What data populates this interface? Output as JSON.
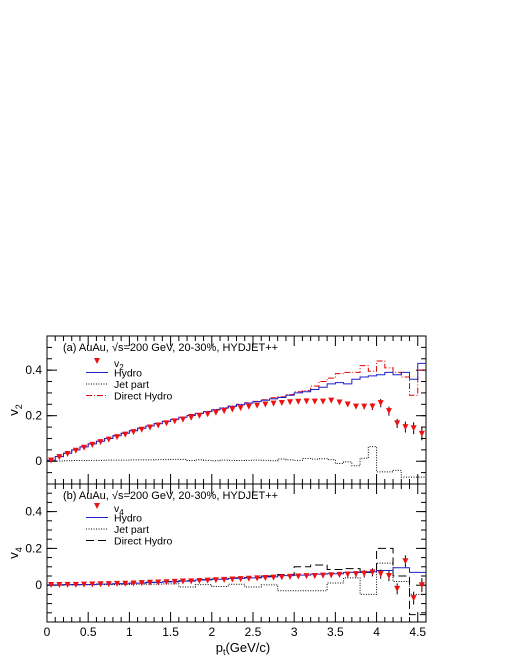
{
  "chart_data": {
    "type": "line",
    "x_axis": {
      "label": "p",
      "label_sub": "t",
      "label_unit": "(GeV/c)",
      "range": [
        0,
        4.6
      ],
      "ticks": [
        {
          "v": 0,
          "label": "0"
        },
        {
          "v": 0.5,
          "label": "0.5"
        },
        {
          "v": 1,
          "label": "1"
        },
        {
          "v": 1.5,
          "label": "1.5"
        },
        {
          "v": 2,
          "label": "2"
        },
        {
          "v": 2.5,
          "label": "2.5"
        },
        {
          "v": 3,
          "label": "3"
        },
        {
          "v": 3.5,
          "label": "3.5"
        },
        {
          "v": 4,
          "label": "4"
        },
        {
          "v": 4.5,
          "label": "4.5"
        }
      ]
    },
    "panels": [
      {
        "id": "a",
        "header_prefix": "(a)  AuAu, ",
        "header_sqrt": "√",
        "header_rest": "s=200 GeV, 20-30%, HYDJET++",
        "ylabel": "v",
        "ylabel_sub": "2",
        "ylim": [
          -0.1,
          0.55
        ],
        "yticks": [
          {
            "v": 0,
            "label": "0"
          },
          {
            "v": 0.2,
            "label": "0.2"
          },
          {
            "v": 0.4,
            "label": "0.4"
          }
        ],
        "legend": [
          {
            "label": "v",
            "sub": "2",
            "style": "marker"
          },
          {
            "label": "Hydro",
            "style": "hydro"
          },
          {
            "label": "Jet part",
            "style": "jet"
          },
          {
            "label": "Direct Hydro",
            "style": "direct"
          }
        ],
        "series": {
          "hydro": {
            "edges": [
              0,
              0.1,
              0.2,
              0.3,
              0.4,
              0.5,
              0.6,
              0.7,
              0.8,
              0.9,
              1.0,
              1.1,
              1.2,
              1.3,
              1.4,
              1.5,
              1.6,
              1.7,
              1.8,
              1.9,
              2.0,
              2.1,
              2.2,
              2.3,
              2.4,
              2.5,
              2.6,
              2.7,
              2.8,
              2.9,
              3.0,
              3.1,
              3.2,
              3.3,
              3.4,
              3.5,
              3.6,
              3.7,
              3.8,
              3.9,
              4.0,
              4.1,
              4.2,
              4.3,
              4.4,
              4.5,
              4.6
            ],
            "values": [
              0.005,
              0.02,
              0.035,
              0.05,
              0.063,
              0.076,
              0.088,
              0.1,
              0.112,
              0.123,
              0.134,
              0.145,
              0.155,
              0.165,
              0.175,
              0.184,
              0.193,
              0.201,
              0.21,
              0.218,
              0.226,
              0.233,
              0.241,
              0.248,
              0.255,
              0.262,
              0.268,
              0.274,
              0.28,
              0.29,
              0.3,
              0.305,
              0.315,
              0.325,
              0.34,
              0.345,
              0.34,
              0.36,
              0.37,
              0.375,
              0.38,
              0.39,
              0.38,
              0.39,
              0.36,
              0.43
            ]
          },
          "jet": {
            "edges": [
              0,
              0.1,
              0.2,
              0.3,
              0.4,
              0.5,
              0.6,
              0.7,
              0.8,
              0.9,
              1.0,
              1.1,
              1.2,
              1.3,
              1.4,
              1.5,
              1.6,
              1.7,
              1.8,
              1.9,
              2.0,
              2.1,
              2.2,
              2.3,
              2.4,
              2.5,
              2.6,
              2.7,
              2.8,
              2.9,
              3.0,
              3.1,
              3.2,
              3.3,
              3.4,
              3.5,
              3.6,
              3.7,
              3.8,
              3.9,
              4.0,
              4.1,
              4.2,
              4.3,
              4.4,
              4.5,
              4.6
            ],
            "values": [
              0.0,
              0.001,
              0.002,
              0.003,
              0.003,
              0.004,
              0.004,
              0.005,
              0.005,
              0.005,
              0.006,
              0.006,
              0.006,
              0.007,
              0.007,
              0.008,
              0.008,
              0.003,
              0.006,
              0.004,
              0.002,
              0.005,
              0.004,
              0.003,
              0.004,
              0.005,
              0.004,
              0.002,
              0.01,
              0.006,
              0.004,
              0.012,
              0.009,
              0.011,
              0.007,
              -0.01,
              -0.003,
              -0.02,
              0.013,
              0.064,
              -0.047,
              -0.047,
              -0.04,
              -0.07,
              -0.07,
              -0.07
            ]
          },
          "direct": {
            "edges": [
              0,
              0.1,
              0.2,
              0.3,
              0.4,
              0.5,
              0.6,
              0.7,
              0.8,
              0.9,
              1.0,
              1.1,
              1.2,
              1.3,
              1.4,
              1.5,
              1.6,
              1.7,
              1.8,
              1.9,
              2.0,
              2.1,
              2.2,
              2.3,
              2.4,
              2.5,
              2.6,
              2.7,
              2.8,
              2.9,
              3.0,
              3.1,
              3.2,
              3.3,
              3.4,
              3.5,
              3.6,
              3.7,
              3.8,
              3.9,
              4.0,
              4.1,
              4.2,
              4.3,
              4.4,
              4.5,
              4.6
            ],
            "values": [
              0.005,
              0.02,
              0.035,
              0.05,
              0.063,
              0.076,
              0.088,
              0.1,
              0.112,
              0.123,
              0.134,
              0.145,
              0.155,
              0.165,
              0.175,
              0.184,
              0.193,
              0.205,
              0.21,
              0.219,
              0.228,
              0.235,
              0.243,
              0.25,
              0.257,
              0.263,
              0.27,
              0.279,
              0.283,
              0.293,
              0.305,
              0.31,
              0.33,
              0.35,
              0.365,
              0.385,
              0.39,
              0.39,
              0.42,
              0.395,
              0.44,
              0.41,
              0.39,
              0.37,
              0.29,
              0.4
            ]
          },
          "points": {
            "x": [
              0.05,
              0.15,
              0.25,
              0.35,
              0.45,
              0.55,
              0.65,
              0.75,
              0.85,
              0.95,
              1.05,
              1.15,
              1.25,
              1.35,
              1.45,
              1.55,
              1.65,
              1.75,
              1.85,
              1.95,
              2.05,
              2.15,
              2.25,
              2.35,
              2.45,
              2.55,
              2.65,
              2.75,
              2.85,
              2.95,
              3.05,
              3.15,
              3.25,
              3.35,
              3.45,
              3.55,
              3.65,
              3.75,
              3.85,
              3.95,
              4.05,
              4.15,
              4.25,
              4.35,
              4.45,
              4.55
            ],
            "y": [
              0.003,
              0.018,
              0.032,
              0.046,
              0.059,
              0.072,
              0.084,
              0.095,
              0.106,
              0.117,
              0.128,
              0.138,
              0.148,
              0.157,
              0.166,
              0.175,
              0.183,
              0.191,
              0.199,
              0.206,
              0.213,
              0.22,
              0.227,
              0.233,
              0.239,
              0.244,
              0.249,
              0.253,
              0.256,
              0.259,
              0.261,
              0.263,
              0.262,
              0.262,
              0.266,
              0.258,
              0.249,
              0.24,
              0.24,
              0.24,
              0.255,
              0.22,
              0.166,
              0.15,
              0.145,
              0.12
            ],
            "err": [
              0.001,
              0.001,
              0.001,
              0.001,
              0.001,
              0.001,
              0.001,
              0.001,
              0.001,
              0.001,
              0.001,
              0.001,
              0.001,
              0.001,
              0.001,
              0.001,
              0.001,
              0.001,
              0.001,
              0.001,
              0.001,
              0.001,
              0.001,
              0.001,
              0.001,
              0.001,
              0.001,
              0.001,
              0.001,
              0.001,
              0.001,
              0.001,
              0.002,
              0.003,
              0.004,
              0.006,
              0.008,
              0.01,
              0.012,
              0.015,
              0.018,
              0.02,
              0.02,
              0.024,
              0.026,
              0.028
            ]
          }
        }
      },
      {
        "id": "b",
        "header_prefix": "(b)  AuAu, ",
        "header_sqrt": "√",
        "header_rest": "s=200 GeV, 20-30%, HYDJET++",
        "ylabel": "v",
        "ylabel_sub": "4",
        "ylim": [
          -0.2,
          0.55
        ],
        "yticks": [
          {
            "v": 0,
            "label": "0"
          },
          {
            "v": 0.2,
            "label": "0.2"
          },
          {
            "v": 0.4,
            "label": "0.4"
          }
        ],
        "legend": [
          {
            "label": "v",
            "sub": "4",
            "style": "marker"
          },
          {
            "label": "Hydro",
            "style": "hydro"
          },
          {
            "label": "Jet part",
            "style": "jet"
          },
          {
            "label": "Direct Hydro",
            "style": "direct"
          }
        ],
        "series": {
          "hydro": {
            "edges": [
              0,
              0.2,
              0.4,
              0.6,
              0.8,
              1.0,
              1.2,
              1.4,
              1.6,
              1.8,
              2.0,
              2.2,
              2.4,
              2.6,
              2.8,
              3.0,
              3.2,
              3.4,
              3.6,
              3.8,
              4.0,
              4.2,
              4.4,
              4.6
            ],
            "values": [
              0.002,
              0.003,
              0.004,
              0.006,
              0.008,
              0.011,
              0.015,
              0.018,
              0.022,
              0.028,
              0.032,
              0.037,
              0.04,
              0.045,
              0.052,
              0.055,
              0.06,
              0.062,
              0.07,
              0.073,
              0.08,
              0.095,
              0.07
            ]
          },
          "jet": {
            "edges": [
              0,
              0.2,
              0.4,
              0.6,
              0.8,
              1.0,
              1.2,
              1.4,
              1.6,
              1.8,
              2.0,
              2.2,
              2.4,
              2.6,
              2.8,
              3.0,
              3.2,
              3.4,
              3.6,
              3.8,
              4.0,
              4.2,
              4.4,
              4.6
            ],
            "values": [
              0.0,
              0.001,
              0.002,
              0.003,
              0.003,
              0.005,
              0.006,
              0.007,
              -0.01,
              0.003,
              -0.007,
              0.005,
              -0.01,
              0.002,
              -0.03,
              -0.03,
              -0.03,
              0.012,
              0.04,
              -0.05,
              0.12,
              0.02,
              -0.05
            ]
          },
          "direct": {
            "edges": [
              0,
              0.2,
              0.4,
              0.6,
              0.8,
              1.0,
              1.2,
              1.4,
              1.6,
              1.8,
              2.0,
              2.2,
              2.4,
              2.6,
              2.8,
              3.0,
              3.2,
              3.4,
              3.6,
              3.8,
              4.0,
              4.2,
              4.4,
              4.6
            ],
            "values": [
              0.002,
              0.003,
              0.004,
              0.006,
              0.008,
              0.012,
              0.016,
              0.02,
              0.024,
              0.03,
              0.034,
              0.04,
              0.042,
              0.05,
              0.058,
              0.1,
              0.11,
              0.085,
              0.09,
              0.07,
              0.2,
              0.05,
              -0.16
            ]
          },
          "points": {
            "x": [
              0.05,
              0.15,
              0.25,
              0.35,
              0.45,
              0.55,
              0.65,
              0.75,
              0.85,
              0.95,
              1.05,
              1.15,
              1.25,
              1.35,
              1.45,
              1.55,
              1.65,
              1.75,
              1.85,
              1.95,
              2.05,
              2.15,
              2.25,
              2.35,
              2.45,
              2.55,
              2.65,
              2.75,
              2.85,
              2.95,
              3.05,
              3.15,
              3.25,
              3.35,
              3.45,
              3.55,
              3.65,
              3.75,
              3.85,
              3.95,
              4.05,
              4.15,
              4.25,
              4.35,
              4.45,
              4.55
            ],
            "y": [
              0.001,
              0.001,
              0.002,
              0.002,
              0.003,
              0.004,
              0.005,
              0.006,
              0.007,
              0.008,
              0.009,
              0.011,
              0.013,
              0.015,
              0.016,
              0.018,
              0.02,
              0.021,
              0.023,
              0.025,
              0.027,
              0.029,
              0.031,
              0.033,
              0.035,
              0.037,
              0.039,
              0.041,
              0.043,
              0.045,
              0.047,
              0.049,
              0.05,
              0.052,
              0.054,
              0.056,
              0.058,
              0.06,
              0.062,
              0.07,
              0.06,
              0.05,
              -0.02,
              0.13,
              -0.07,
              0.0
            ],
            "err": [
              0.001,
              0.001,
              0.001,
              0.001,
              0.001,
              0.001,
              0.001,
              0.001,
              0.001,
              0.001,
              0.001,
              0.001,
              0.001,
              0.001,
              0.001,
              0.001,
              0.001,
              0.002,
              0.002,
              0.002,
              0.002,
              0.003,
              0.003,
              0.003,
              0.004,
              0.004,
              0.005,
              0.005,
              0.006,
              0.007,
              0.008,
              0.009,
              0.01,
              0.011,
              0.012,
              0.013,
              0.015,
              0.017,
              0.02,
              0.022,
              0.025,
              0.028,
              0.03,
              0.032,
              0.035,
              0.038
            ]
          }
        }
      }
    ],
    "colors": {
      "hydro": "#1f1fcc",
      "jet": "#000000",
      "direct": "#e00000",
      "direct_b": "#000000",
      "marker": "#ee1111"
    }
  }
}
